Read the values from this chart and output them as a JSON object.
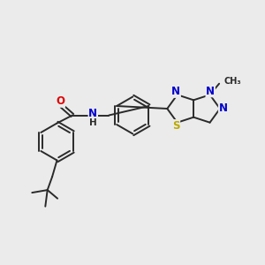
{
  "background_color": "#ebebeb",
  "bond_color": "#2a2a2a",
  "atom_colors": {
    "O": "#dd0000",
    "N": "#0000cc",
    "S": "#bbaa00",
    "C": "#2a2a2a",
    "H": "#2a2a2a"
  },
  "figsize": [
    3.0,
    3.0
  ],
  "dpi": 100,
  "bond_lw": 1.4,
  "font_size": 7.5
}
